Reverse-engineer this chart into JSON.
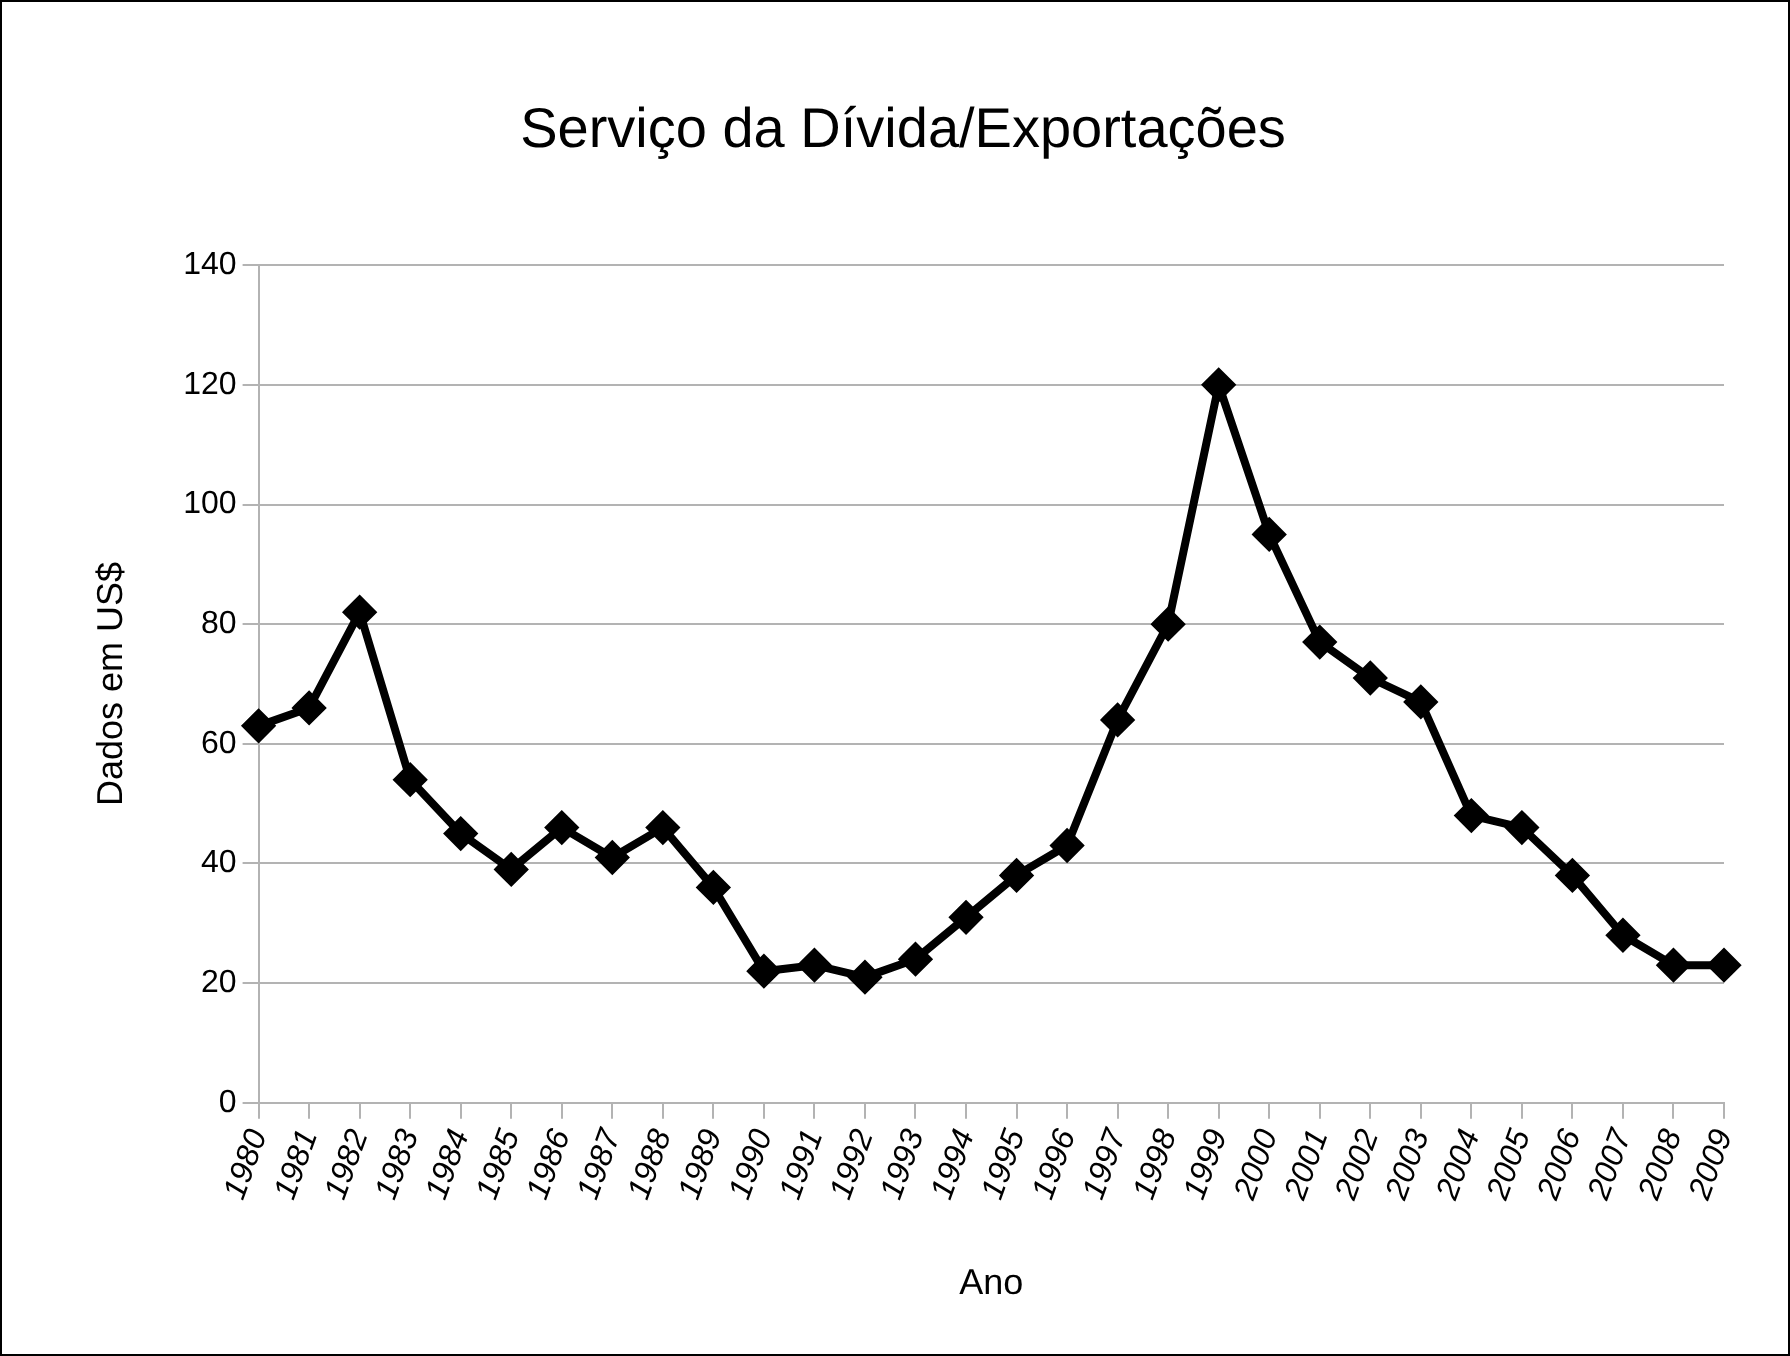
{
  "chart_data": {
    "type": "line",
    "title": "Serviço da Dívida/Exportações",
    "xlabel": "Ano",
    "ylabel": "Dados em US$",
    "categories": [
      "1980",
      "1981",
      "1982",
      "1983",
      "1984",
      "1985",
      "1986",
      "1987",
      "1988",
      "1989",
      "1990",
      "1991",
      "1992",
      "1993",
      "1994",
      "1995",
      "1996",
      "1997",
      "1998",
      "1999",
      "2000",
      "2001",
      "2002",
      "2003",
      "2004",
      "2005",
      "2006",
      "2007",
      "2008",
      "2009"
    ],
    "series": [
      {
        "color": "#000000",
        "values": [
          63,
          66,
          82,
          54,
          45,
          39,
          46,
          41,
          46,
          36,
          22,
          23,
          21,
          24,
          31,
          38,
          43,
          64,
          80,
          120,
          95,
          77,
          71,
          67,
          48,
          46,
          38,
          28,
          23,
          23
        ]
      }
    ],
    "ylim": [
      0,
      140
    ],
    "yticks": [
      0,
      20,
      40,
      60,
      80,
      100,
      120,
      140
    ],
    "grid": "y",
    "legend": false,
    "marker": "diamond",
    "line_style": "solid"
  }
}
